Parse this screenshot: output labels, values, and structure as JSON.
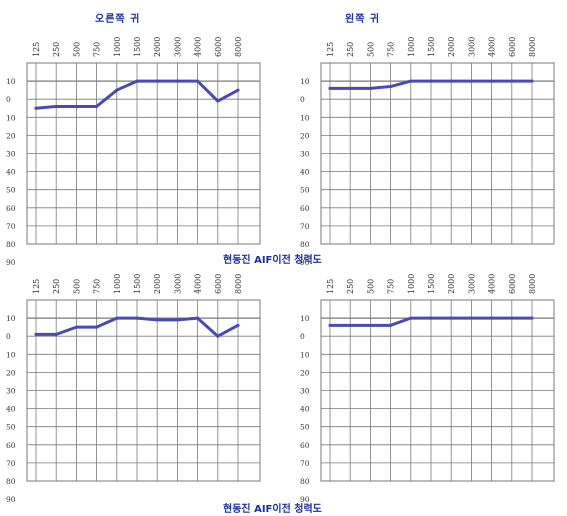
{
  "titles": {
    "left": "오른쪽 귀",
    "right": "왼쪽 귀"
  },
  "captions": {
    "top": "현동진 AIF이전 청력도",
    "bottom": "현동진 AIF이전 청력도"
  },
  "line_color": "#4a4ab4",
  "grid_color": "#7a7a7a",
  "chart_data": [
    {
      "type": "line",
      "ear": "right",
      "row": "top",
      "x": [
        "125",
        "250",
        "500",
        "750",
        "1000",
        "1500",
        "2000",
        "3000",
        "4000",
        "6000",
        "8000"
      ],
      "xlabels": [
        "125",
        "250",
        "500",
        "750",
        "1000",
        "1500",
        "2000",
        "3000",
        "4000",
        "6000",
        "8000"
      ],
      "ylabels": [
        "10",
        "0",
        "10",
        "20",
        "30",
        "40",
        "50",
        "60",
        "70",
        "80",
        "90"
      ],
      "ylim": [
        -10,
        90
      ],
      "grid": true,
      "values": [
        15,
        14,
        14,
        14,
        5,
        0,
        0,
        0,
        0,
        11,
        5
      ]
    },
    {
      "type": "line",
      "ear": "left",
      "row": "top",
      "x": [
        "125",
        "250",
        "500",
        "750",
        "1000",
        "1500",
        "2000",
        "3000",
        "4000",
        "6000",
        "8000"
      ],
      "xlabels": [
        "125",
        "250",
        "500",
        "750",
        "1000",
        "1500",
        "2000",
        "3000",
        "4000",
        "6000",
        "8000"
      ],
      "ylabels": [
        "10",
        "0",
        "10",
        "20",
        "30",
        "40",
        "50",
        "60",
        "70",
        "80",
        "90"
      ],
      "ylim": [
        -10,
        90
      ],
      "grid": true,
      "values": [
        4,
        4,
        4,
        3,
        0,
        0,
        0,
        0,
        0,
        0,
        0
      ]
    },
    {
      "type": "line",
      "ear": "right",
      "row": "bottom",
      "x": [
        "125",
        "250",
        "500",
        "750",
        "1000",
        "1500",
        "2000",
        "3000",
        "4000",
        "6000",
        "8000"
      ],
      "xlabels": [
        "125",
        "250",
        "500",
        "750",
        "1000",
        "1500",
        "2000",
        "3000",
        "4000",
        "6000",
        "8000"
      ],
      "ylabels": [
        "10",
        "0",
        "10",
        "20",
        "30",
        "40",
        "50",
        "60",
        "70",
        "80",
        "90"
      ],
      "ylim": [
        -10,
        90
      ],
      "grid": true,
      "values": [
        9,
        9,
        5,
        5,
        0,
        0,
        1,
        1,
        0,
        10,
        4
      ]
    },
    {
      "type": "line",
      "ear": "left",
      "row": "bottom",
      "x": [
        "125",
        "250",
        "500",
        "750",
        "1000",
        "1500",
        "2000",
        "3000",
        "4000",
        "6000",
        "8000"
      ],
      "xlabels": [
        "125",
        "250",
        "500",
        "750",
        "1000",
        "1500",
        "2000",
        "3000",
        "4000",
        "6000",
        "8000"
      ],
      "ylabels": [
        "10",
        "0",
        "10",
        "20",
        "30",
        "40",
        "50",
        "60",
        "70",
        "80",
        "90"
      ],
      "ylim": [
        -10,
        90
      ],
      "grid": true,
      "values": [
        4,
        4,
        4,
        4,
        0,
        0,
        0,
        0,
        0,
        0,
        0
      ]
    }
  ]
}
